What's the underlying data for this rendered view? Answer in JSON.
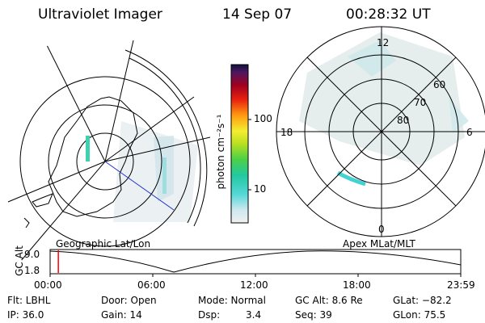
{
  "header": {
    "instrument": "Ultraviolet Imager",
    "date": "14 Sep 07",
    "time": "00:28:32 UT"
  },
  "colorbar": {
    "unit_label": "photon cm⁻²s⁻¹",
    "ticks": [
      "100",
      "10"
    ]
  },
  "left_panel": {
    "caption": "Geographic Lat/Lon"
  },
  "right_panel": {
    "caption": "Apex MLat/MLT",
    "mlt_labels": {
      "top": "12",
      "left": "18",
      "right": "6",
      "bottom": "0"
    },
    "lat_labels": [
      "60",
      "70",
      "80"
    ]
  },
  "altitude_plot": {
    "ylabel": "GC Alt",
    "yticks": [
      "9.0",
      "1.8"
    ],
    "xticks": [
      "00:00",
      "06:00",
      "12:00",
      "18:00",
      "23:59"
    ],
    "current_time_fraction": 0.02,
    "marker_color": "#ff0000"
  },
  "status": {
    "row1": [
      "Flt: LBHL",
      "Door: Open",
      "Mode: Normal",
      "GC Alt: 8.6 Re",
      "GLat: −82.2"
    ],
    "row2": [
      "IP: 36.0",
      "Gain: 14",
      "Dsp:",
      "3.4",
      "Seq: 39",
      "GLon: 75.5"
    ]
  }
}
